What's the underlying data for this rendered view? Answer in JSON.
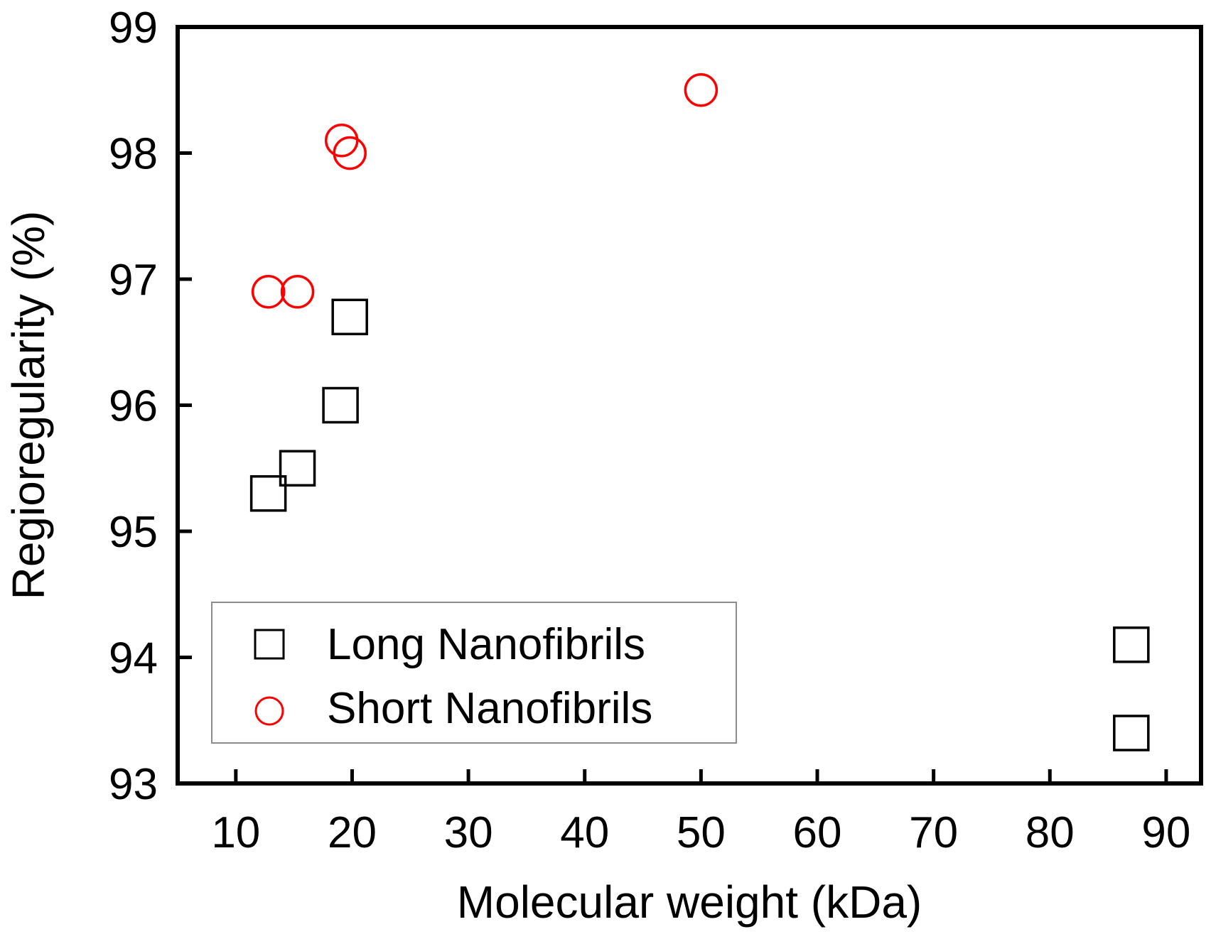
{
  "chart_data": {
    "type": "scatter",
    "title": "",
    "xlabel": "Molecular weight (kDa)",
    "ylabel": "Regioregularity (%)",
    "xlim": [
      5,
      93
    ],
    "ylim": [
      93,
      99
    ],
    "xticks": [
      10,
      20,
      30,
      40,
      50,
      60,
      70,
      80,
      90
    ],
    "yticks": [
      93,
      94,
      95,
      96,
      97,
      98,
      99
    ],
    "grid": false,
    "legend_position": "bottom-left",
    "series": [
      {
        "name": "Long Nanofibrils",
        "marker": "square",
        "color": "#000000",
        "points": [
          {
            "x": 12.8,
            "y": 95.3
          },
          {
            "x": 15.3,
            "y": 95.5
          },
          {
            "x": 19.0,
            "y": 96.0
          },
          {
            "x": 19.8,
            "y": 96.7
          },
          {
            "x": 87.0,
            "y": 94.1
          },
          {
            "x": 87.0,
            "y": 93.4
          }
        ]
      },
      {
        "name": "Short Nanofibrils",
        "marker": "circle",
        "color": "#ff0000",
        "points": [
          {
            "x": 12.8,
            "y": 96.9
          },
          {
            "x": 15.3,
            "y": 96.9
          },
          {
            "x": 19.1,
            "y": 98.1
          },
          {
            "x": 19.8,
            "y": 98.0
          },
          {
            "x": 50.0,
            "y": 98.5
          }
        ]
      }
    ]
  }
}
